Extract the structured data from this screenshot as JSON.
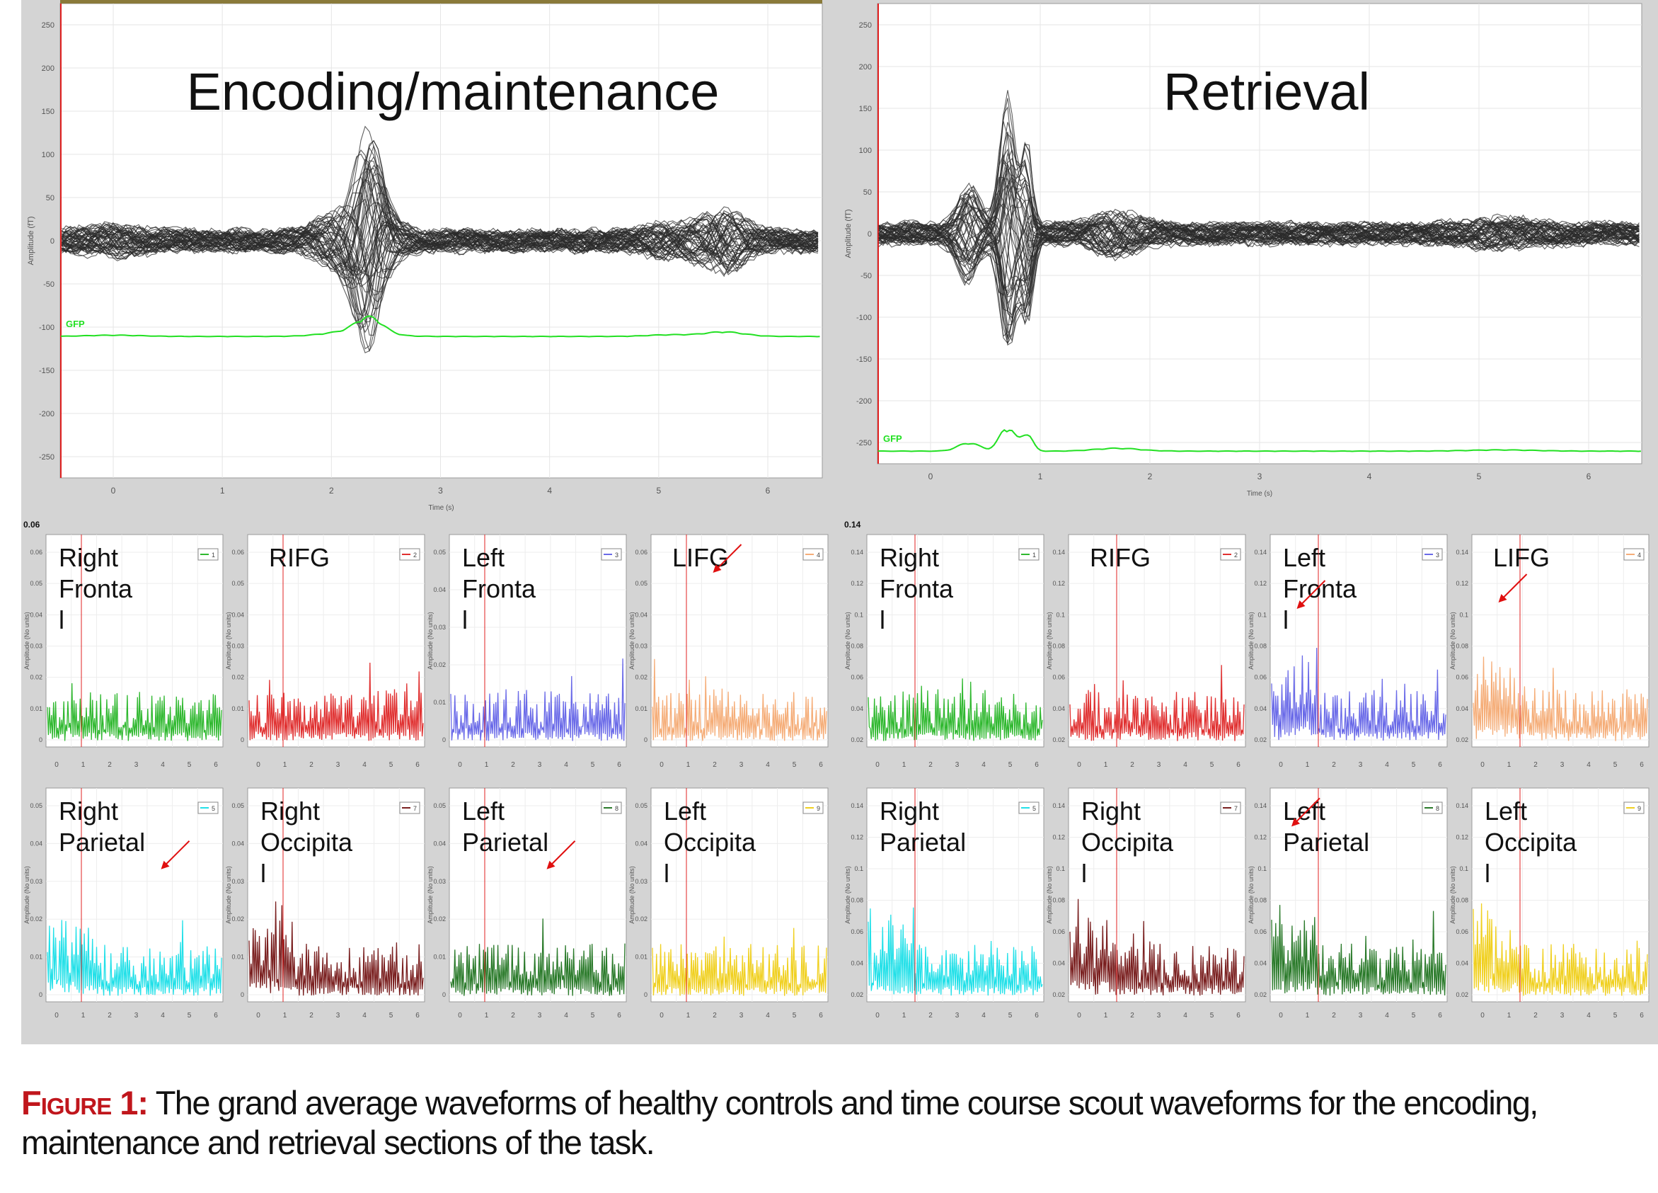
{
  "figure": {
    "label": "Figure 1:",
    "caption": "The grand average waveforms of healthy controls and time course scout waveforms for the encoding, maintenance and retrieval sections of the task."
  },
  "colors": {
    "background_panel": "#d4d4d4",
    "plot_bg": "#ffffff",
    "waveform": "#2b2b2b",
    "gfp": "#22e022",
    "cursor": "#e02020",
    "arrow": "#e01010"
  },
  "main_plots": [
    {
      "id": "encoding",
      "title": "Encoding/maintenance",
      "ylabel": "Amplitude (fT)",
      "xlabel": "Time (s)",
      "gfp_label": "GFP",
      "yticks": [
        "250",
        "200",
        "150",
        "100",
        "50",
        "0",
        "-50",
        "-100",
        "-150",
        "-200",
        "-250"
      ],
      "xticks": [
        "0",
        "1",
        "2",
        "3",
        "4",
        "5",
        "6"
      ]
    },
    {
      "id": "retrieval",
      "title": "Retrieval",
      "ylabel": "Amplitude (fT)",
      "xlabel": "Time (s)",
      "gfp_label": "GFP",
      "yticks": [
        "250",
        "200",
        "150",
        "100",
        "50",
        "0",
        "-50",
        "-100",
        "-150",
        "-200",
        "-250"
      ],
      "xticks": [
        "0",
        "1",
        "2",
        "3",
        "4",
        "5",
        "6"
      ]
    }
  ],
  "scouts": {
    "ylabel": "Amplitude (No units)",
    "xticks": [
      "0",
      "1",
      "2",
      "3",
      "4",
      "5",
      "6"
    ],
    "encoding_corner": "0.06",
    "retrieval_corner": "0.14",
    "encoding": [
      {
        "label": "Right Fronta l",
        "legend": "1",
        "color": "#2fb82f",
        "yticks": [
          "0.06",
          "0.05",
          "0.04",
          "0.03",
          "0.02",
          "0.01",
          "0"
        ]
      },
      {
        "label": "RIFG",
        "legend": "2",
        "color": "#e03030",
        "yticks": [
          "0.06",
          "0.05",
          "0.04",
          "0.03",
          "0.02",
          "0.01",
          "0"
        ]
      },
      {
        "label": "Left Fronta l",
        "legend": "3",
        "color": "#6a6ae8",
        "yticks": [
          "0.05",
          "0.04",
          "0.03",
          "0.02",
          "0.01",
          "0"
        ]
      },
      {
        "label": "LIFG",
        "legend": "4",
        "color": "#f5ad78",
        "arrow": true,
        "yticks": [
          "0.06",
          "0.05",
          "0.04",
          "0.03",
          "0.02",
          "0.01",
          "0"
        ]
      },
      {
        "label": "Right Parietal",
        "legend": "5",
        "color": "#22e0e8",
        "arrow": true,
        "yticks": [
          "0.05",
          "0.04",
          "0.03",
          "0.02",
          "0.01",
          "0"
        ]
      },
      {
        "label": "Right Occipita l",
        "legend": "7",
        "color": "#7a2020",
        "yticks": [
          "0.05",
          "0.04",
          "0.03",
          "0.02",
          "0.01",
          "0"
        ]
      },
      {
        "label": "Left Parietal",
        "legend": "8",
        "color": "#2a7a2a",
        "arrow": true,
        "yticks": [
          "0.05",
          "0.04",
          "0.03",
          "0.02",
          "0.01",
          "0"
        ]
      },
      {
        "label": "Left Occipita l",
        "legend": "9",
        "color": "#f0d020",
        "yticks": [
          "0.05",
          "0.04",
          "0.03",
          "0.02",
          "0.01",
          "0"
        ]
      }
    ],
    "retrieval": [
      {
        "label": "Right Fronta l",
        "legend": "1",
        "color": "#2fb82f",
        "yticks": [
          "0.14",
          "0.12",
          "0.1",
          "0.08",
          "0.06",
          "0.04",
          "0.02"
        ]
      },
      {
        "label": "RIFG",
        "legend": "2",
        "color": "#e03030",
        "yticks": [
          "0.14",
          "0.12",
          "0.1",
          "0.08",
          "0.06",
          "0.04",
          "0.02"
        ]
      },
      {
        "label": "Left Fronta l",
        "legend": "3",
        "color": "#6a6ae8",
        "arrow": true,
        "yticks": [
          "0.14",
          "0.12",
          "0.1",
          "0.08",
          "0.06",
          "0.04",
          "0.02"
        ]
      },
      {
        "label": "LIFG",
        "legend": "4",
        "color": "#f5ad78",
        "arrow": true,
        "yticks": [
          "0.14",
          "0.12",
          "0.1",
          "0.08",
          "0.06",
          "0.04",
          "0.02"
        ]
      },
      {
        "label": "Right Parietal",
        "legend": "5",
        "color": "#22e0e8",
        "yticks": [
          "0.14",
          "0.12",
          "0.1",
          "0.08",
          "0.06",
          "0.04",
          "0.02"
        ]
      },
      {
        "label": "Right Occipita l",
        "legend": "7",
        "color": "#7a2020",
        "yticks": [
          "0.14",
          "0.12",
          "0.1",
          "0.08",
          "0.06",
          "0.04",
          "0.02"
        ]
      },
      {
        "label": "Left Parietal",
        "legend": "8",
        "color": "#2a7a2a",
        "arrow": true,
        "yticks": [
          "0.14",
          "0.12",
          "0.1",
          "0.08",
          "0.06",
          "0.04",
          "0.02"
        ]
      },
      {
        "label": "Left Occipita l",
        "legend": "9",
        "color": "#f0d020",
        "yticks": [
          "0.14",
          "0.12",
          "0.1",
          "0.08",
          "0.06",
          "0.04",
          "0.02"
        ]
      }
    ]
  }
}
